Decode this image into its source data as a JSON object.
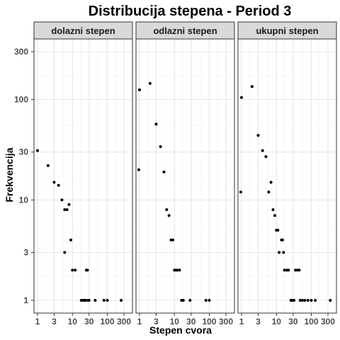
{
  "chart_data": {
    "type": "scatter",
    "title": "Distribucija stepena - Period 3",
    "xlabel": "Stepen cvora",
    "ylabel": "Frekvencija",
    "x_scale": "log10",
    "y_scale": "log10",
    "xlim": [
      1,
      400
    ],
    "ylim": [
      1,
      400
    ],
    "x_ticks": [
      1,
      3,
      10,
      30,
      100,
      300
    ],
    "x_tick_labels": [
      "1",
      "3",
      "10",
      "30",
      "100",
      "300"
    ],
    "y_ticks": [
      1,
      3,
      10,
      30,
      100,
      300
    ],
    "y_tick_labels": [
      "1",
      "3",
      "10",
      "30",
      "100",
      "300"
    ],
    "grid": true,
    "facets": [
      {
        "name": "dolazni stepen",
        "points": [
          {
            "x": 1,
            "y": 31
          },
          {
            "x": 2,
            "y": 22
          },
          {
            "x": 3,
            "y": 15
          },
          {
            "x": 4,
            "y": 14
          },
          {
            "x": 5,
            "y": 10
          },
          {
            "x": 6,
            "y": 8
          },
          {
            "x": 7,
            "y": 8
          },
          {
            "x": 8,
            "y": 9
          },
          {
            "x": 9,
            "y": 4
          },
          {
            "x": 6,
            "y": 3
          },
          {
            "x": 10,
            "y": 2
          },
          {
            "x": 12,
            "y": 2
          },
          {
            "x": 25,
            "y": 2
          },
          {
            "x": 27,
            "y": 2
          },
          {
            "x": 18,
            "y": 1
          },
          {
            "x": 20,
            "y": 1
          },
          {
            "x": 22,
            "y": 1
          },
          {
            "x": 24,
            "y": 1
          },
          {
            "x": 28,
            "y": 1
          },
          {
            "x": 30,
            "y": 1
          },
          {
            "x": 45,
            "y": 1
          },
          {
            "x": 80,
            "y": 1
          },
          {
            "x": 100,
            "y": 1
          },
          {
            "x": 250,
            "y": 1
          }
        ]
      },
      {
        "name": "odlazni stepen",
        "points": [
          {
            "x": 0.95,
            "y": 20
          },
          {
            "x": 1,
            "y": 125
          },
          {
            "x": 2,
            "y": 145
          },
          {
            "x": 3,
            "y": 57
          },
          {
            "x": 4,
            "y": 34
          },
          {
            "x": 5,
            "y": 19
          },
          {
            "x": 6,
            "y": 8
          },
          {
            "x": 7,
            "y": 7
          },
          {
            "x": 8,
            "y": 4
          },
          {
            "x": 9,
            "y": 4
          },
          {
            "x": 10,
            "y": 2
          },
          {
            "x": 11,
            "y": 2
          },
          {
            "x": 12,
            "y": 2
          },
          {
            "x": 14,
            "y": 2
          },
          {
            "x": 16,
            "y": 1
          },
          {
            "x": 18,
            "y": 1
          },
          {
            "x": 28,
            "y": 1
          },
          {
            "x": 80,
            "y": 1
          },
          {
            "x": 100,
            "y": 1
          }
        ]
      },
      {
        "name": "ukupni stepen",
        "points": [
          {
            "x": 0.95,
            "y": 12
          },
          {
            "x": 1,
            "y": 105
          },
          {
            "x": 2,
            "y": 135
          },
          {
            "x": 3,
            "y": 44
          },
          {
            "x": 4,
            "y": 31
          },
          {
            "x": 5,
            "y": 27
          },
          {
            "x": 6,
            "y": 12
          },
          {
            "x": 7,
            "y": 15
          },
          {
            "x": 8,
            "y": 8
          },
          {
            "x": 9,
            "y": 7
          },
          {
            "x": 10,
            "y": 5
          },
          {
            "x": 11,
            "y": 5
          },
          {
            "x": 12,
            "y": 3
          },
          {
            "x": 14,
            "y": 4
          },
          {
            "x": 15,
            "y": 4
          },
          {
            "x": 16,
            "y": 3
          },
          {
            "x": 17,
            "y": 2
          },
          {
            "x": 20,
            "y": 2
          },
          {
            "x": 22,
            "y": 2
          },
          {
            "x": 26,
            "y": 1
          },
          {
            "x": 28,
            "y": 1
          },
          {
            "x": 30,
            "y": 1
          },
          {
            "x": 32,
            "y": 1
          },
          {
            "x": 35,
            "y": 2
          },
          {
            "x": 40,
            "y": 2
          },
          {
            "x": 45,
            "y": 2
          },
          {
            "x": 48,
            "y": 1
          },
          {
            "x": 55,
            "y": 1
          },
          {
            "x": 65,
            "y": 1
          },
          {
            "x": 80,
            "y": 1
          },
          {
            "x": 100,
            "y": 1
          },
          {
            "x": 130,
            "y": 1
          },
          {
            "x": 350,
            "y": 1
          }
        ]
      }
    ]
  }
}
